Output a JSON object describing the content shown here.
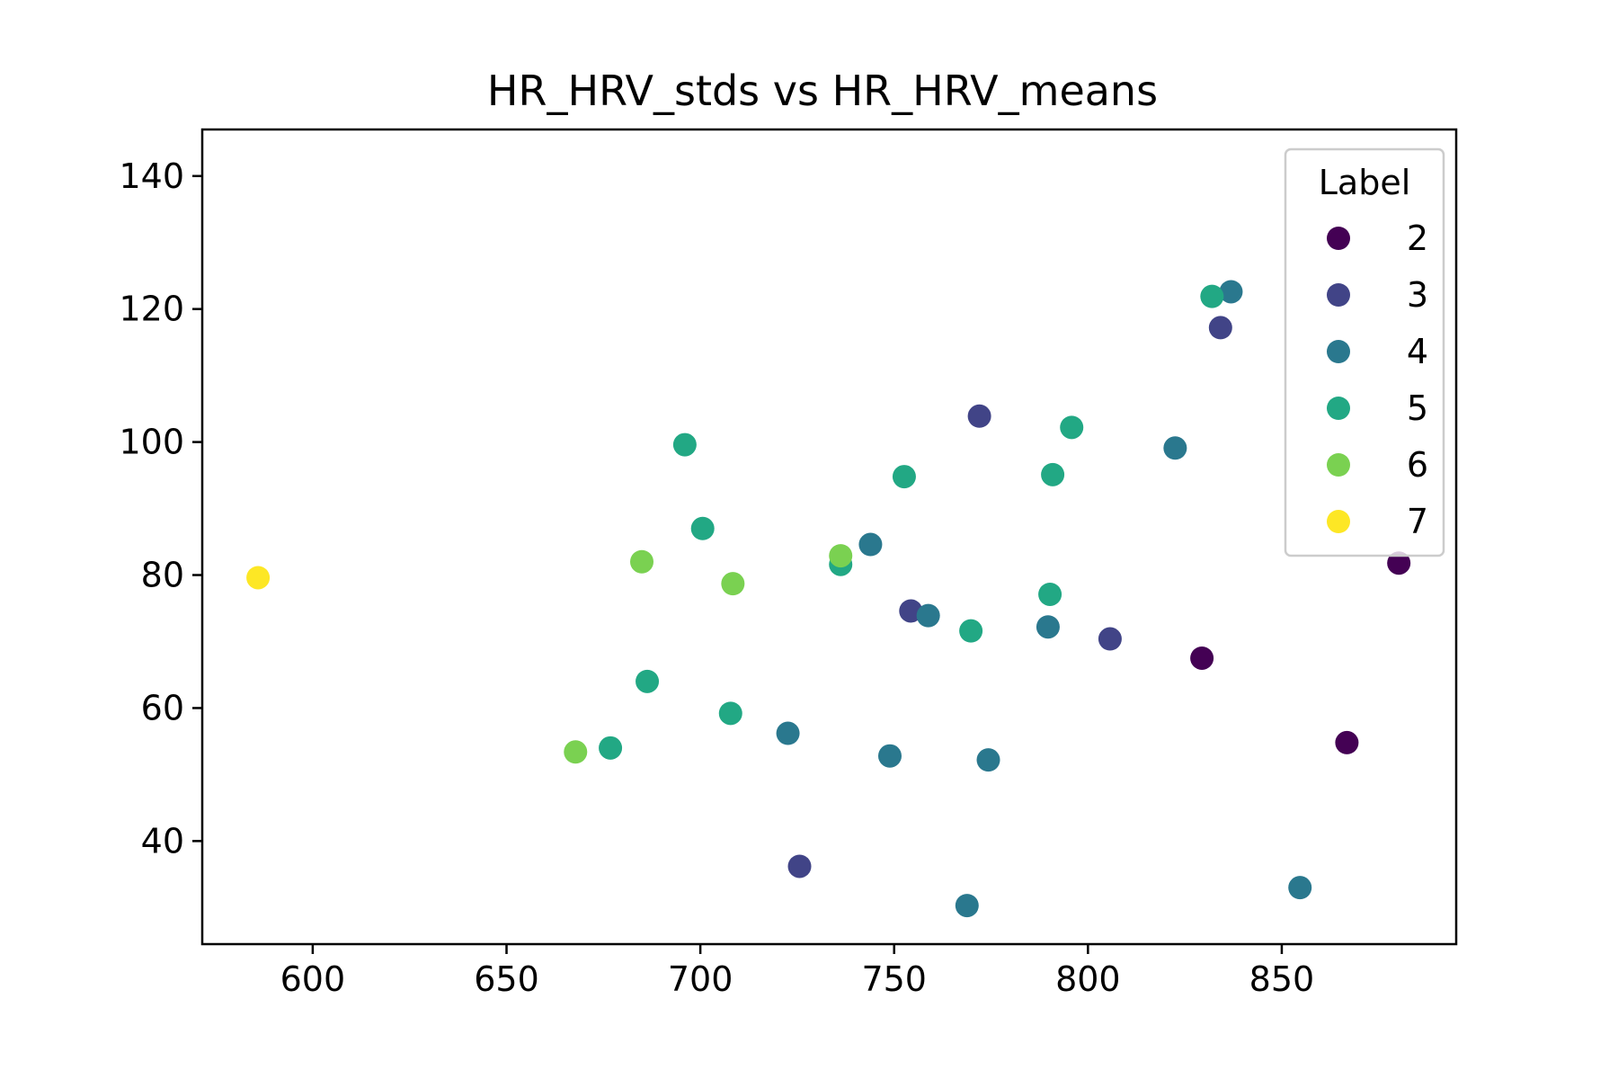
{
  "chart_data": {
    "type": "scatter",
    "title": "HR_HRV_stds vs HR_HRV_means",
    "xlabel": "",
    "ylabel": "",
    "xlim": [
      571.5,
      895
    ],
    "ylim": [
      24.5,
      147
    ],
    "xticks": [
      600,
      650,
      700,
      750,
      800,
      850
    ],
    "yticks": [
      40,
      60,
      80,
      100,
      120,
      140
    ],
    "grid": false,
    "legend": {
      "title": "Label",
      "placement": "upper right"
    },
    "series": [
      {
        "name": "2",
        "color": "#440154",
        "points": [
          [
            829.4,
            67.5
          ],
          [
            866.8,
            54.8
          ],
          [
            880.2,
            81.8
          ]
        ]
      },
      {
        "name": "3",
        "color": "#414487",
        "points": [
          [
            725.6,
            36.2
          ],
          [
            754.3,
            74.6
          ],
          [
            772.0,
            103.9
          ],
          [
            805.7,
            70.4
          ],
          [
            834.2,
            117.2
          ]
        ]
      },
      {
        "name": "4",
        "color": "#2a788e",
        "points": [
          [
            722.6,
            56.2
          ],
          [
            743.9,
            84.6
          ],
          [
            748.9,
            52.8
          ],
          [
            758.8,
            73.9
          ],
          [
            768.8,
            30.3
          ],
          [
            774.3,
            52.2
          ],
          [
            789.7,
            72.2
          ],
          [
            822.5,
            99.1
          ],
          [
            836.9,
            122.6
          ],
          [
            854.7,
            33.0
          ]
        ]
      },
      {
        "name": "5",
        "color": "#22a884",
        "points": [
          [
            676.8,
            54.0
          ],
          [
            686.3,
            64.0
          ],
          [
            696.0,
            99.6
          ],
          [
            700.6,
            87.0
          ],
          [
            707.8,
            59.2
          ],
          [
            736.2,
            81.6
          ],
          [
            752.6,
            94.8
          ],
          [
            769.8,
            71.6
          ],
          [
            790.2,
            77.1
          ],
          [
            790.9,
            95.1
          ],
          [
            795.8,
            102.2
          ],
          [
            832.0,
            121.9
          ]
        ]
      },
      {
        "name": "6",
        "color": "#7ad151",
        "points": [
          [
            667.8,
            53.4
          ],
          [
            684.9,
            82.0
          ],
          [
            708.4,
            78.7
          ],
          [
            736.2,
            82.9
          ]
        ]
      },
      {
        "name": "7",
        "color": "#fde725",
        "points": [
          [
            585.9,
            79.6
          ]
        ]
      }
    ]
  }
}
